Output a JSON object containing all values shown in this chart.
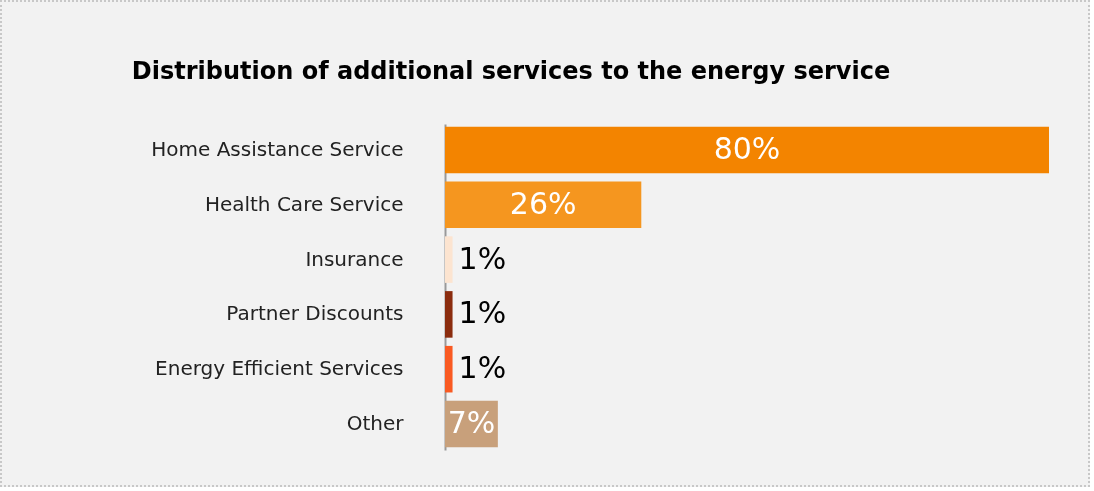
{
  "chart_data": {
    "type": "bar",
    "orientation": "horizontal",
    "title": "Distribution of additional services to the energy service",
    "categories": [
      "Home Assistance Service",
      "Health Care Service",
      "Insurance",
      "Partner Discounts",
      "Energy Efficient Services",
      "Other"
    ],
    "values": [
      80,
      26,
      1,
      1,
      1,
      7
    ],
    "value_labels": [
      "80%",
      "26%",
      "1%",
      "1%",
      "1%",
      "7%"
    ],
    "colors": [
      "#f38400",
      "#f5961f",
      "#fce4d0",
      "#8b2c0e",
      "#f95a22",
      "#c8a07b"
    ]
  }
}
